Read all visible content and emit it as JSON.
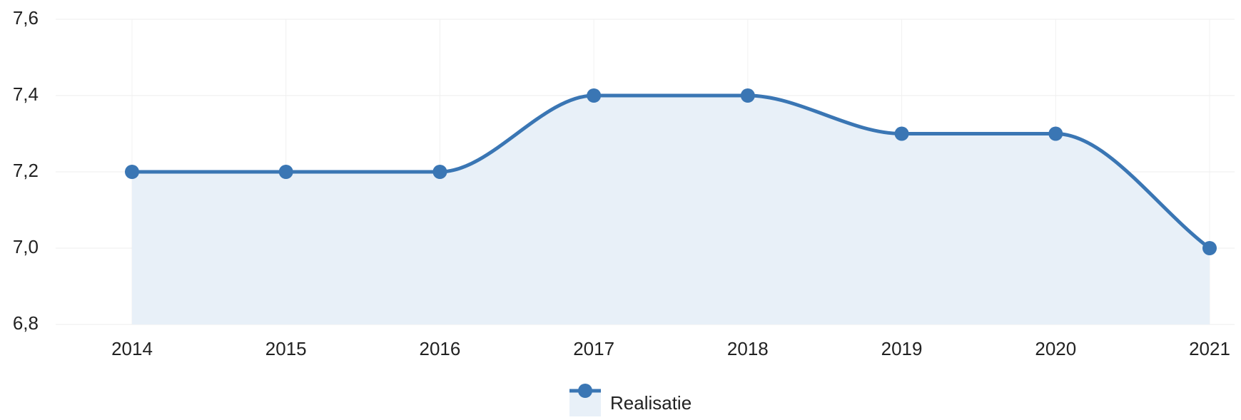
{
  "chart_data": {
    "type": "line",
    "categories": [
      "2014",
      "2015",
      "2016",
      "2017",
      "2018",
      "2019",
      "2020",
      "2021"
    ],
    "series": [
      {
        "name": "Realisatie",
        "color": "#3a76b4",
        "values": [
          7.2,
          7.2,
          7.2,
          7.4,
          7.4,
          7.3,
          7.3,
          7.0
        ]
      }
    ],
    "ylim": [
      6.8,
      7.6
    ],
    "yticks": [
      {
        "value": 6.8,
        "label": "6,8"
      },
      {
        "value": 7.0,
        "label": "7,0"
      },
      {
        "value": 7.2,
        "label": "7,2"
      },
      {
        "value": 7.4,
        "label": "7,4"
      },
      {
        "value": 7.6,
        "label": "7,6"
      }
    ],
    "grid": true,
    "area": true,
    "legend": "bottom"
  }
}
